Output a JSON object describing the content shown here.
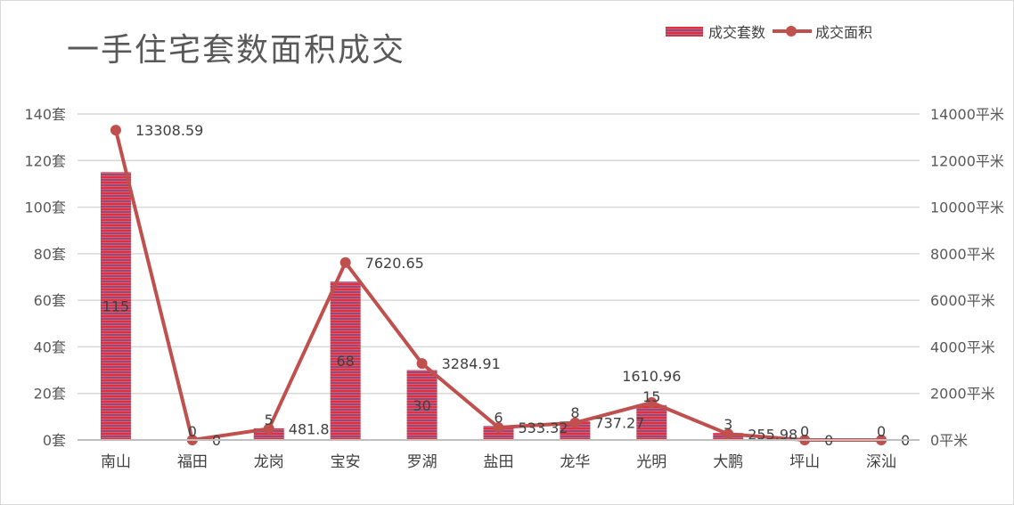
{
  "chart_data": {
    "type": "bar",
    "title": "一手住宅套数面积成交",
    "categories": [
      "南山",
      "福田",
      "龙岗",
      "宝安",
      "罗湖",
      "盐田",
      "龙华",
      "光明",
      "大鹏",
      "坪山",
      "深汕"
    ],
    "series": [
      {
        "name": "成交套数",
        "type": "bar",
        "axis": "left",
        "values": [
          115,
          0,
          5,
          68,
          30,
          6,
          8,
          15,
          3,
          0,
          0
        ],
        "labels": [
          "115",
          "0",
          "5",
          "68",
          "30",
          "6",
          "8",
          "15",
          "3",
          "0",
          "0"
        ]
      },
      {
        "name": "成交面积",
        "type": "line",
        "axis": "right",
        "values": [
          13308.59,
          0,
          481.8,
          7620.65,
          3284.91,
          533.32,
          737.27,
          1610.96,
          255.98,
          0,
          0
        ],
        "labels": [
          "13308.59",
          "0",
          "481.8",
          "7620.65",
          "3284.91",
          "533.32",
          "737.27",
          "1610.96",
          "255.98",
          "0",
          "0"
        ]
      }
    ],
    "y_left": {
      "ylim": [
        0,
        140
      ],
      "ticks": [
        "0套",
        "20套",
        "40套",
        "60套",
        "80套",
        "100套",
        "120套",
        "140套"
      ]
    },
    "y_right": {
      "ylim": [
        0,
        14000
      ],
      "ticks": [
        "0平米",
        "2000平米",
        "4000平米",
        "6000平米",
        "8000平米",
        "10000平米",
        "12000平米",
        "14000平米"
      ]
    },
    "grid": true,
    "legend_position": "top-right",
    "colors": {
      "bar_fill": "#e0303c",
      "bar_stripe": "#8878b8",
      "line": "#c0504d",
      "grid": "#d9d9d9",
      "text": "#595959"
    }
  }
}
